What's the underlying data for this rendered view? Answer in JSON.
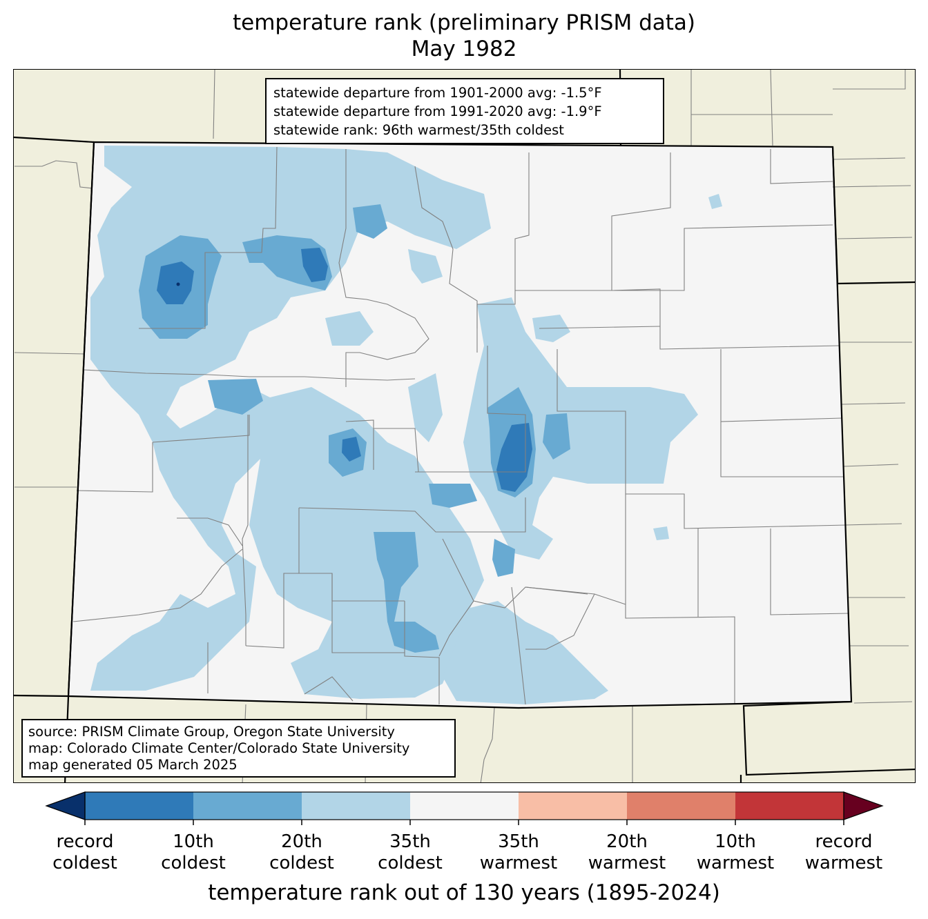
{
  "title": {
    "line1": "temperature rank (preliminary PRISM data)",
    "line2": "May 1982"
  },
  "stats": {
    "line1": "statewide departure from 1901-2000 avg: -1.5°F",
    "line2": "statewide departure from 1991-2020 avg: -1.9°F",
    "line3": "statewide rank: 96th warmest/35th coldest"
  },
  "source": {
    "line1": "source: PRISM Climate Group, Oregon State University",
    "line2": "map: Colorado Climate Center/Colorado State University",
    "line3": "map generated 05 March 2025"
  },
  "colorbar": {
    "title": "temperature rank out of 130 years (1895-2024)",
    "under_color": "#08306b",
    "over_color": "#67001f",
    "bins": [
      {
        "label": "record coldest to 10th coldest",
        "color": "#2f7ab8"
      },
      {
        "label": "10th coldest to 20th coldest",
        "color": "#68aad2"
      },
      {
        "label": "20th coldest to 35th coldest",
        "color": "#b2d5e7"
      },
      {
        "label": "35th coldest to 35th warmest",
        "color": "#f5f5f5"
      },
      {
        "label": "35th warmest to 20th warmest",
        "color": "#f8bea6"
      },
      {
        "label": "20th warmest to 10th warmest",
        "color": "#e0806a"
      },
      {
        "label": "10th warmest to record warmest",
        "color": "#c23538"
      }
    ],
    "ticks": [
      {
        "line1": "record",
        "line2": "coldest"
      },
      {
        "line1": "10th",
        "line2": "coldest"
      },
      {
        "line1": "20th",
        "line2": "coldest"
      },
      {
        "line1": "35th",
        "line2": "coldest"
      },
      {
        "line1": "35th",
        "line2": "warmest"
      },
      {
        "line1": "20th",
        "line2": "warmest"
      },
      {
        "line1": "10th",
        "line2": "warmest"
      },
      {
        "line1": "record",
        "line2": "warmest"
      }
    ]
  },
  "map_colors": {
    "land_outside": "#f0efdd",
    "no_anomaly": "#f5f5f5",
    "county_lines": "#808080",
    "state_lines": "#000000"
  }
}
